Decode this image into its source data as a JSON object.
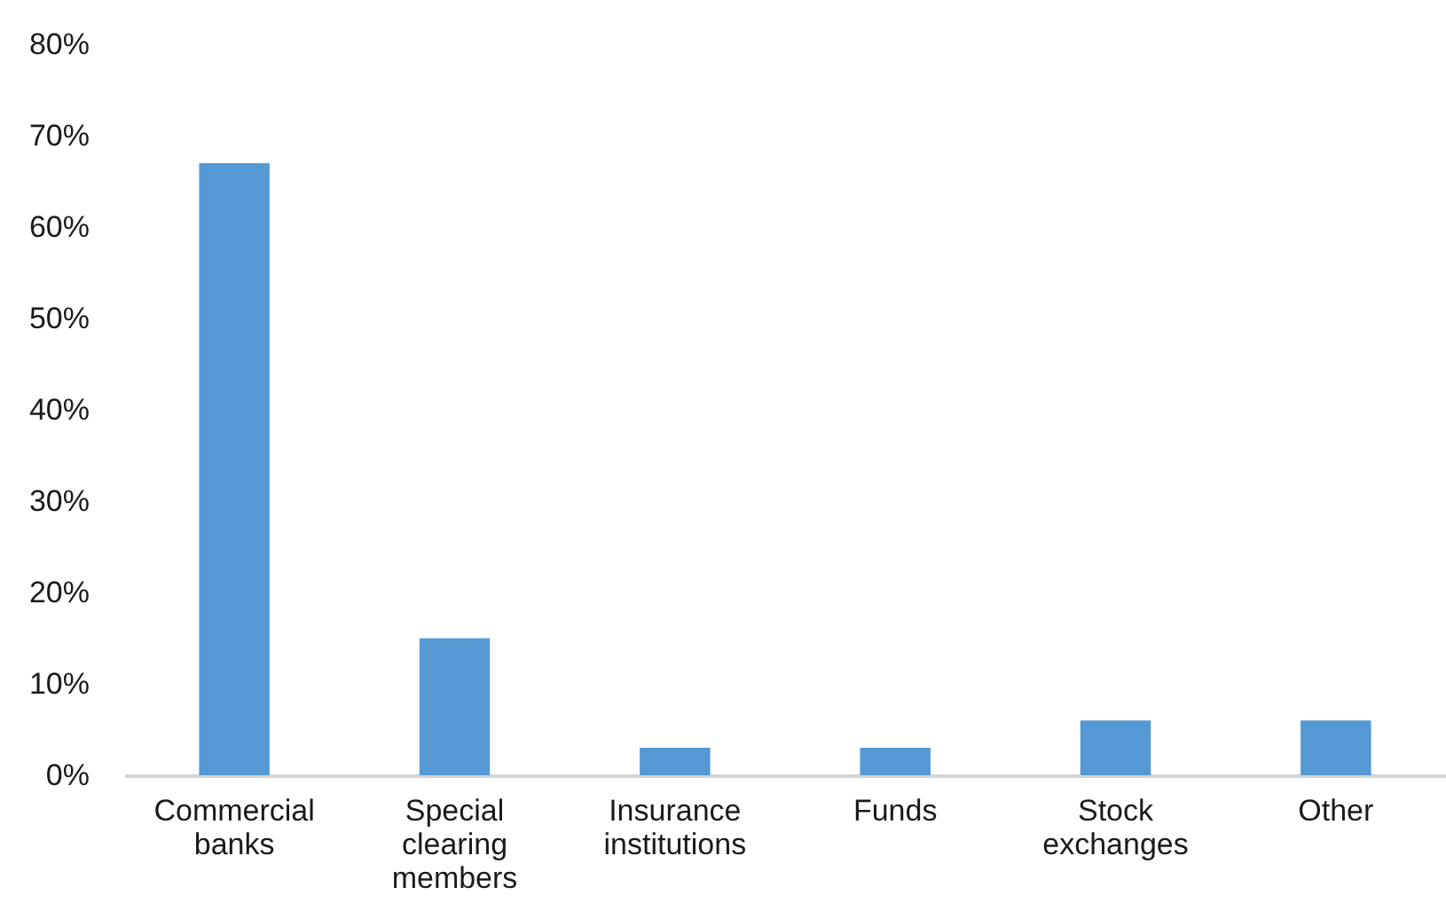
{
  "chart_data": {
    "type": "bar",
    "categories": [
      "Commercial banks",
      "Special clearing members",
      "Insurance institutions",
      "Funds",
      "Stock exchanges",
      "Other"
    ],
    "values": [
      67,
      15,
      3,
      3,
      6,
      6
    ],
    "color": "#5499d3",
    "ylim": [
      0,
      80
    ],
    "yticks": [
      {
        "value": 0,
        "label": "0%"
      },
      {
        "value": 10,
        "label": "10%"
      },
      {
        "value": 20,
        "label": "20%"
      },
      {
        "value": 30,
        "label": "30%"
      },
      {
        "value": 40,
        "label": "40%"
      },
      {
        "value": 50,
        "label": "50%"
      },
      {
        "value": 60,
        "label": "60%"
      },
      {
        "value": 70,
        "label": "70%"
      },
      {
        "value": 80,
        "label": "80%"
      }
    ]
  }
}
